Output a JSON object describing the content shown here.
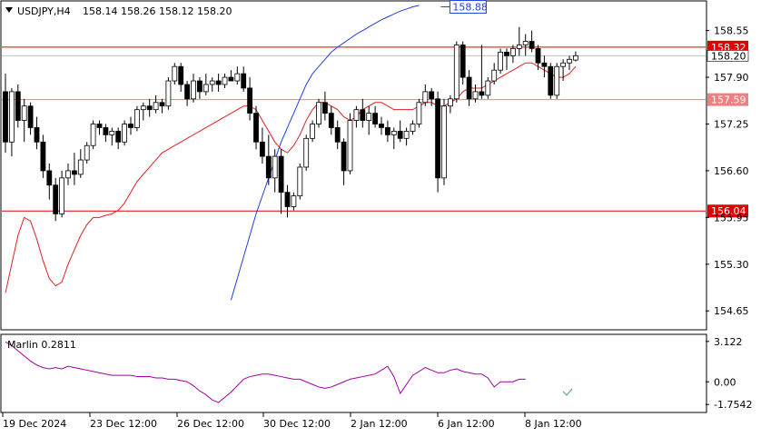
{
  "header": {
    "symbol": "USDJPY,H4",
    "ohlc": "158.14 158.26 158.12 158.20"
  },
  "price_axis": {
    "ticks": [
      "158.55",
      "157.90",
      "157.25",
      "156.60",
      "155.95",
      "155.30",
      "154.65"
    ],
    "ymin": 154.4,
    "ymax": 158.95
  },
  "levels": [
    {
      "label": "158.32",
      "value": 158.32,
      "color": "#e00000",
      "line": "solid"
    },
    {
      "label": "157.59",
      "value": 157.59,
      "color": "#f08080",
      "line": "solid"
    },
    {
      "label": "156.04",
      "value": 156.04,
      "color": "#e00000",
      "line": "solid"
    }
  ],
  "current_price": {
    "label": "158.20",
    "value": 158.2
  },
  "blue_label": {
    "label": "158.88",
    "value": 158.88
  },
  "indicator": {
    "name": "Marlin 0.2811",
    "ticks": [
      "3.122",
      "0.00",
      "-1.7542"
    ],
    "ymin": -2.3,
    "ymax": 3.6,
    "color": "#a000a0"
  },
  "time_axis": {
    "labels": [
      "19 Dec 2024",
      "23 Dec 12:00",
      "26 Dec 12:00",
      "30 Dec 12:00",
      "2 Jan 12:00",
      "6 Jan 12:00",
      "8 Jan 12:00"
    ],
    "positions": [
      0,
      16,
      32,
      48,
      64,
      80,
      96
    ]
  },
  "chart_data": {
    "type": "candlestick",
    "candles": [
      [
        157.7,
        157.95,
        156.85,
        157.0
      ],
      [
        157.0,
        157.75,
        156.8,
        157.7
      ],
      [
        157.7,
        157.8,
        157.2,
        157.3
      ],
      [
        157.3,
        157.6,
        157.0,
        157.5
      ],
      [
        157.5,
        157.55,
        157.1,
        157.2
      ],
      [
        157.2,
        157.35,
        156.9,
        157.0
      ],
      [
        157.0,
        157.1,
        156.5,
        156.6
      ],
      [
        156.6,
        156.7,
        156.2,
        156.4
      ],
      [
        156.4,
        156.5,
        155.9,
        156.0
      ],
      [
        156.0,
        156.6,
        155.95,
        156.5
      ],
      [
        156.5,
        156.7,
        156.4,
        156.6
      ],
      [
        156.6,
        156.85,
        156.4,
        156.55
      ],
      [
        156.55,
        156.9,
        156.5,
        156.75
      ],
      [
        156.75,
        157.0,
        156.7,
        156.95
      ],
      [
        156.95,
        157.3,
        156.9,
        157.25
      ],
      [
        157.25,
        157.3,
        157.1,
        157.2
      ],
      [
        157.2,
        157.25,
        157.0,
        157.1
      ],
      [
        157.1,
        157.2,
        156.95,
        157.15
      ],
      [
        157.15,
        157.2,
        156.9,
        157.0
      ],
      [
        157.0,
        157.3,
        156.95,
        157.25
      ],
      [
        157.25,
        157.35,
        157.1,
        157.2
      ],
      [
        157.2,
        157.5,
        157.15,
        157.45
      ],
      [
        157.45,
        157.55,
        157.3,
        157.5
      ],
      [
        157.5,
        157.6,
        157.35,
        157.45
      ],
      [
        157.45,
        157.65,
        157.4,
        157.55
      ],
      [
        157.55,
        157.6,
        157.4,
        157.5
      ],
      [
        157.5,
        157.9,
        157.45,
        157.85
      ],
      [
        157.85,
        158.1,
        157.8,
        158.05
      ],
      [
        158.05,
        158.1,
        157.7,
        157.8
      ],
      [
        157.8,
        157.85,
        157.5,
        157.6
      ],
      [
        157.6,
        157.95,
        157.55,
        157.85
      ],
      [
        157.85,
        157.9,
        157.6,
        157.7
      ],
      [
        157.7,
        157.95,
        157.65,
        157.8
      ],
      [
        157.8,
        157.9,
        157.7,
        157.85
      ],
      [
        157.85,
        157.95,
        157.7,
        157.8
      ],
      [
        157.8,
        157.95,
        157.75,
        157.9
      ],
      [
        157.9,
        158.0,
        157.85,
        157.85
      ],
      [
        157.85,
        158.05,
        157.8,
        157.95
      ],
      [
        157.95,
        158.05,
        157.7,
        157.75
      ],
      [
        157.75,
        157.9,
        157.3,
        157.4
      ],
      [
        157.4,
        157.5,
        156.9,
        157.0
      ],
      [
        157.0,
        157.2,
        156.7,
        156.8
      ],
      [
        156.8,
        157.1,
        156.4,
        156.5
      ],
      [
        156.5,
        156.9,
        156.3,
        156.8
      ],
      [
        156.8,
        156.9,
        156.0,
        156.3
      ],
      [
        156.3,
        156.4,
        155.95,
        156.1
      ],
      [
        156.1,
        156.3,
        156.05,
        156.25
      ],
      [
        156.25,
        156.7,
        156.2,
        156.65
      ],
      [
        156.65,
        157.1,
        156.6,
        157.05
      ],
      [
        157.05,
        157.3,
        157.0,
        157.25
      ],
      [
        157.25,
        157.6,
        157.2,
        157.55
      ],
      [
        157.55,
        157.7,
        157.3,
        157.4
      ],
      [
        157.4,
        157.5,
        157.1,
        157.2
      ],
      [
        157.2,
        157.3,
        156.9,
        157.0
      ],
      [
        157.0,
        157.05,
        156.4,
        156.6
      ],
      [
        156.6,
        157.4,
        156.55,
        157.3
      ],
      [
        157.3,
        157.5,
        157.2,
        157.45
      ],
      [
        157.45,
        157.6,
        157.2,
        157.3
      ],
      [
        157.3,
        157.5,
        157.1,
        157.4
      ],
      [
        157.4,
        157.5,
        157.2,
        157.25
      ],
      [
        157.25,
        157.35,
        157.1,
        157.2
      ],
      [
        157.2,
        157.3,
        157.0,
        157.1
      ],
      [
        157.1,
        157.2,
        156.9,
        157.15
      ],
      [
        157.15,
        157.3,
        157.0,
        157.05
      ],
      [
        157.05,
        157.2,
        156.95,
        157.15
      ],
      [
        157.15,
        157.3,
        157.1,
        157.25
      ],
      [
        157.25,
        157.6,
        157.2,
        157.55
      ],
      [
        157.55,
        157.8,
        157.5,
        157.7
      ],
      [
        157.7,
        157.75,
        157.5,
        157.6
      ],
      [
        157.6,
        157.7,
        156.3,
        156.5
      ],
      [
        156.5,
        157.6,
        156.4,
        157.5
      ],
      [
        157.5,
        157.65,
        157.4,
        157.6
      ],
      [
        157.6,
        158.4,
        157.55,
        158.35
      ],
      [
        158.35,
        158.4,
        157.8,
        157.9
      ],
      [
        157.9,
        158.0,
        157.5,
        157.6
      ],
      [
        157.6,
        157.8,
        157.55,
        157.7
      ],
      [
        157.7,
        158.35,
        157.6,
        157.65
      ],
      [
        157.65,
        157.9,
        157.6,
        157.85
      ],
      [
        157.85,
        158.1,
        157.8,
        158.0
      ],
      [
        158.0,
        158.3,
        157.95,
        158.25
      ],
      [
        158.25,
        158.3,
        158.0,
        158.2
      ],
      [
        158.2,
        158.35,
        158.1,
        158.3
      ],
      [
        158.3,
        158.6,
        158.2,
        158.35
      ],
      [
        158.35,
        158.5,
        158.2,
        158.4
      ],
      [
        158.4,
        158.55,
        158.25,
        158.3
      ],
      [
        158.3,
        158.35,
        158.0,
        158.1
      ],
      [
        158.1,
        158.2,
        157.9,
        158.05
      ],
      [
        158.05,
        158.1,
        157.6,
        157.65
      ],
      [
        157.65,
        158.1,
        157.6,
        158.05
      ],
      [
        158.05,
        158.15,
        157.85,
        158.1
      ],
      [
        158.1,
        158.2,
        158.0,
        158.15
      ],
      [
        158.14,
        158.26,
        158.12,
        158.2
      ]
    ],
    "red_ma": [
      154.9,
      155.3,
      155.7,
      155.95,
      155.9,
      155.65,
      155.35,
      155.1,
      155.0,
      155.05,
      155.3,
      155.5,
      155.7,
      155.85,
      155.95,
      155.95,
      155.98,
      156.0,
      156.05,
      156.15,
      156.3,
      156.45,
      156.55,
      156.65,
      156.75,
      156.85,
      156.9,
      156.95,
      157.0,
      157.05,
      157.1,
      157.15,
      157.2,
      157.25,
      157.3,
      157.35,
      157.4,
      157.45,
      157.5,
      157.5,
      157.45,
      157.3,
      157.15,
      157.0,
      156.9,
      156.85,
      156.95,
      157.1,
      157.3,
      157.45,
      157.55,
      157.55,
      157.5,
      157.45,
      157.35,
      157.3,
      157.35,
      157.45,
      157.5,
      157.55,
      157.55,
      157.5,
      157.45,
      157.45,
      157.45,
      157.45,
      157.5,
      157.55,
      157.55,
      157.5,
      157.5,
      157.55,
      157.6,
      157.7,
      157.75,
      157.75,
      157.75,
      157.8,
      157.85,
      157.9,
      157.95,
      158.0,
      158.05,
      158.1,
      158.1,
      158.05,
      158.0,
      157.95,
      157.9,
      157.9,
      157.95,
      158.05
    ],
    "blue_ma": [
      145.0,
      145.5,
      146.0,
      146.5,
      147.0,
      147.5,
      148.0,
      148.5,
      149.0,
      149.5,
      150.0,
      150.5,
      151.0,
      151.5,
      152.0,
      152.5,
      153.0,
      153.5,
      154.0,
      154.4,
      154.8,
      155.1,
      155.4,
      155.7,
      156.0,
      156.25,
      156.5,
      156.75,
      157.0,
      157.2,
      157.4,
      157.6,
      157.8,
      157.95,
      158.05,
      158.15,
      158.25,
      158.32,
      158.38,
      158.44,
      158.5,
      158.55,
      158.6,
      158.65,
      158.7,
      158.74,
      158.78,
      158.82,
      158.85,
      158.88,
      158.9
    ],
    "blue_ma_start_index": 41,
    "marlin": [
      3.1,
      2.8,
      2.4,
      2.0,
      1.6,
      1.3,
      1.1,
      1.0,
      1.1,
      1.0,
      1.2,
      1.1,
      1.0,
      0.9,
      0.8,
      0.7,
      0.6,
      0.5,
      0.5,
      0.5,
      0.5,
      0.4,
      0.4,
      0.4,
      0.3,
      0.3,
      0.2,
      0.2,
      0.1,
      0.0,
      -0.3,
      -0.7,
      -1.0,
      -1.4,
      -1.6,
      -1.2,
      -0.8,
      -0.3,
      0.2,
      0.4,
      0.5,
      0.6,
      0.6,
      0.5,
      0.4,
      0.3,
      0.2,
      0.2,
      0.0,
      -0.2,
      -0.4,
      -0.5,
      -0.4,
      -0.2,
      0.0,
      0.2,
      0.3,
      0.4,
      0.5,
      0.6,
      0.9,
      1.2,
      0.4,
      -0.9,
      -0.2,
      0.5,
      0.8,
      1.1,
      0.9,
      0.7,
      0.7,
      0.9,
      1.0,
      0.8,
      0.7,
      0.6,
      0.6,
      0.3,
      -0.4,
      0.0,
      0.0,
      0.0,
      0.2,
      0.2
    ],
    "marlin_start_index": 0
  }
}
